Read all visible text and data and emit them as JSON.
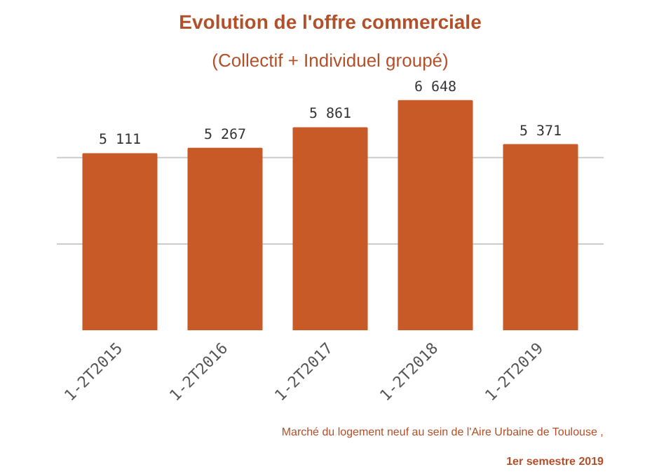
{
  "chart_data": {
    "type": "bar",
    "title": "Evolution de l'offre commerciale",
    "subtitle": "(Collectif + Individuel groupé)",
    "categories": [
      "1-2T2015",
      "1-2T2016",
      "1-2T2017",
      "1-2T2018",
      "1-2T2019"
    ],
    "values": [
      5111,
      5267,
      5861,
      6648,
      5371
    ],
    "value_labels": [
      "5 111",
      "5 267",
      "5 861",
      "6 648",
      "5 371"
    ],
    "color": "#c85a27",
    "ref_lines": [
      {
        "axis": "y",
        "value": 2500,
        "color": "#cccccc"
      },
      {
        "axis": "y",
        "value": 5000,
        "color": "#cccccc"
      }
    ],
    "tick_labels": "x",
    "annotations": [
      "Marché du logement neuf au sein de l'Aire Urbaine de Toulouse ,",
      "1er semestre 2019"
    ]
  }
}
